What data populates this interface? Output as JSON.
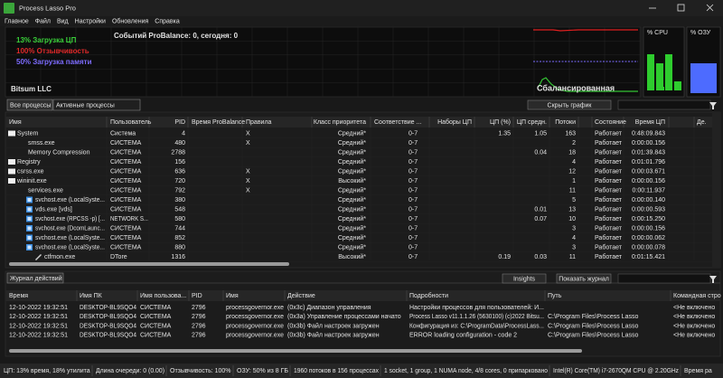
{
  "window": {
    "title": "Process Lasso Pro"
  },
  "menu": [
    "Главное",
    "Файл",
    "Вид",
    "Настройки",
    "Обновления",
    "Справка"
  ],
  "graph": {
    "cpu_load": "13% Загрузка ЦП",
    "responsiveness": "100% Отзывчивость",
    "memory_load": "50% Загрузка памяти",
    "vendor": "Bitsum LLC",
    "probalance_events": "Событий ProBalance: 0, сегодня: 0",
    "mode": "Сбалансированная",
    "cpu_meter_label": "% CPU",
    "ram_meter_label": "% ОЗУ"
  },
  "tabs": [
    "Все процессы",
    "Активные процессы"
  ],
  "hide_graph_button": "Скрыть график",
  "process_table": {
    "columns": [
      "Имя",
      "Пользователь",
      "PID",
      "Время ProBalance",
      "Правила",
      "Класс приоритета",
      "Соответствие ...",
      "Наборы ЦП",
      "ЦП (%)",
      "ЦП средн.",
      "Потоки",
      "Состояние",
      "Время ЦП",
      "Де."
    ],
    "rows": [
      [
        "System",
        "Система",
        4,
        null,
        "X",
        "Средний*",
        "0-7",
        null,
        1.35,
        1.05,
        163,
        "Работает",
        "0:48:09.843",
        null
      ],
      [
        "smss.exe",
        "СИСТЕМА",
        480,
        null,
        "X",
        "Средний*",
        "0-7",
        null,
        null,
        null,
        2,
        "Работает",
        "0:00:00.156",
        null
      ],
      [
        "Memory Compression",
        "СИСТЕМА",
        2788,
        null,
        null,
        "Средний*",
        "0-7",
        null,
        null,
        0.04,
        18,
        "Работает",
        "0:01:39.843",
        null
      ],
      [
        "Registry",
        "СИСТЕМА",
        156,
        null,
        null,
        "Средний*",
        "0-7",
        null,
        null,
        null,
        4,
        "Работает",
        "0:01:01.796",
        null
      ],
      [
        "csrss.exe",
        "СИСТЕМА",
        636,
        null,
        "X",
        "Средний*",
        "0-7",
        null,
        null,
        null,
        12,
        "Работает",
        "0:00:03.671",
        null
      ],
      [
        "wininit.exe",
        "СИСТЕМА",
        720,
        null,
        "X",
        "Высокий*",
        "0-7",
        null,
        null,
        null,
        1,
        "Работает",
        "0:00:00.156",
        null
      ],
      [
        "services.exe",
        "СИСТЕМА",
        792,
        null,
        "X",
        "Средний*",
        "0-7",
        null,
        null,
        null,
        11,
        "Работает",
        "0:00:11.937",
        null
      ],
      [
        "svchost.exe (LocalSyste...",
        "СИСТЕМА",
        380,
        null,
        null,
        "Средний*",
        "0-7",
        null,
        null,
        null,
        5,
        "Работает",
        "0:00:00.140",
        null
      ],
      [
        "vds.exe [vds]",
        "СИСТЕМА",
        548,
        null,
        null,
        "Средний*",
        "0-7",
        null,
        null,
        0.01,
        13,
        "Работает",
        "0:00:00.593",
        null
      ],
      [
        "svchost.exe (RPCSS -p) [...",
        "NETWORK S...",
        580,
        null,
        null,
        "Средний*",
        "0-7",
        null,
        null,
        0.07,
        10,
        "Работает",
        "0:00:15.250",
        null
      ],
      [
        "svchost.exe (DcomLaunc...",
        "СИСТЕМА",
        744,
        null,
        null,
        "Средний*",
        "0-7",
        null,
        null,
        null,
        3,
        "Работает",
        "0:00:00.156",
        null
      ],
      [
        "svchost.exe (LocalSyste...",
        "СИСТЕМА",
        852,
        null,
        null,
        "Средний*",
        "0-7",
        null,
        null,
        null,
        4,
        "Работает",
        "0:00:00.062",
        null
      ],
      [
        "svchost.exe (LocalSyste...",
        "СИСТЕМА",
        880,
        null,
        null,
        "Средний*",
        "0-7",
        null,
        null,
        null,
        3,
        "Работает",
        "0:00:00.078",
        null
      ],
      [
        "ctfmon.exe",
        "DTore",
        1316,
        null,
        null,
        "Высокий*",
        "0-7",
        null,
        0.19,
        0.03,
        11,
        "Работает",
        "0:01:15.421",
        null
      ]
    ]
  },
  "log": {
    "tab": "Журнал действий",
    "insights_button": "Insights",
    "show_log_button": "Показать журнал",
    "columns": [
      "Время",
      "Имя ПК",
      "Имя пользова...",
      "PID",
      "Имя",
      "Действие",
      "Подробности",
      "Путь",
      "Командная стро"
    ],
    "rows": [
      [
        "12-10-2022 19:32:51",
        "DESKTOP-BL9SQO4",
        "СИСТЕМА",
        2796,
        "processgovernor.exe",
        "(0x3c) Диапазон управления",
        "Настройки процессов для пользователей: И...",
        null,
        "<Не включено"
      ],
      [
        "12-10-2022 19:32:51",
        "DESKTOP-BL9SQO4",
        "СИСТЕМА",
        2796,
        "processgovernor.exe",
        "(0x3a) Управление процессами начато",
        "Process Lasso v11.1.1.26 (5630100) (c)2022 Bitsu...",
        "C:\\Program Files\\Process Lasso",
        "<Не включено"
      ],
      [
        "12-10-2022 19:32:51",
        "DESKTOP-BL9SQO4",
        "СИСТЕМА",
        2796,
        "processgovernor.exe",
        "(0x3b) Файл настроек загружен",
        "Конфигурация из: C:\\ProgramData\\ProcessLass...",
        "C:\\Program Files\\Process Lasso",
        "<Не включено"
      ],
      [
        "12-10-2022 19:32:51",
        "DESKTOP-BL9SQO4",
        "СИСТЕМА",
        2796,
        "processgovernor.exe",
        "(0x3b) Файл настроек загружен",
        "ERROR loading configuration - code 2",
        "C:\\Program Files\\Process Lasso",
        "<Не включено"
      ]
    ]
  },
  "status_bar": [
    "ЦП: 13% время, 18% утилита",
    "Длина очереди: 0 (0.00)",
    "Отзывчивость: 100%",
    "ОЗУ: 50% из 8 ГБ",
    "1960 потоков в 156 процессах",
    "1 socket, 1 group, 1 NUMA node, 4/8 cores, 0 припарковано",
    "Intel(R) Core(TM) i7-2670QM CPU @ 2.20GHz",
    "Время ра"
  ]
}
